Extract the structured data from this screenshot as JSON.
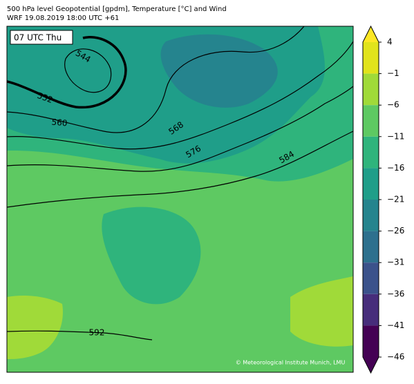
{
  "header": {
    "title": "500 hPa level Geopotential [gpdm], Temperature [°C] and Wind",
    "subtitle": "WRF 19.08.2019 18:00 UTC +61"
  },
  "map": {
    "time_label": "07 UTC Thu",
    "contour_labels": [
      544,
      552,
      560,
      568,
      576,
      584,
      592
    ],
    "credit": "© Meteorological Institute Munich, LMU"
  },
  "colorbar": {
    "ticks": [
      4,
      {
        "value": -1,
        "label": "−1"
      },
      {
        "value": -6,
        "label": "−6"
      },
      {
        "value": -11,
        "label": "−11"
      },
      {
        "value": -16,
        "label": "−16"
      },
      {
        "value": -21,
        "label": "−21"
      },
      {
        "value": -26,
        "label": "−26"
      },
      {
        "value": -31,
        "label": "−31"
      },
      {
        "value": -36,
        "label": "−36"
      },
      {
        "value": -41,
        "label": "−41"
      },
      {
        "value": -46,
        "label": "−46"
      }
    ],
    "colors": [
      "#e1e31c",
      "#a0da39",
      "#5ec962",
      "#2fb47c",
      "#1f9e89",
      "#25848e",
      "#2d708e",
      "#3b528b",
      "#472d7b",
      "#440154"
    ],
    "extend_colors": [
      "#fde725",
      "#440154"
    ]
  }
}
